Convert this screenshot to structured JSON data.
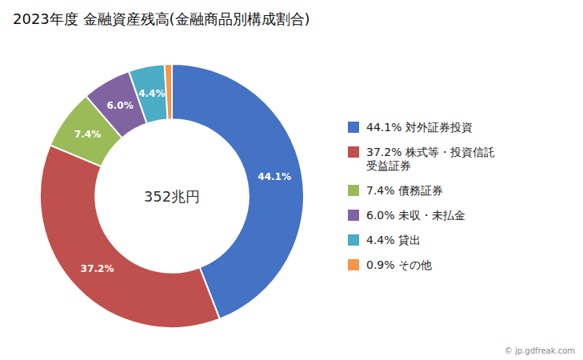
{
  "chart_data": {
    "type": "pie",
    "title": "2023年度 金融資産残高(金融商品別構成割合)",
    "annotations": [
      "352兆円",
      "© jp.gdfreak.com"
    ],
    "categories": [
      "44.1% 対外証券投資",
      "37.2% 株式等・投資信託\n受益証券",
      "7.4% 債務証券",
      "6.0% 未収・未払金",
      "4.4% 貸出",
      "0.9% その他"
    ],
    "values": [
      44.1,
      37.2,
      7.4,
      6.0,
      4.4,
      0.9
    ],
    "value_labels": [
      "44.1%",
      "37.2%",
      "7.4%",
      "6.0%",
      "4.4%",
      null
    ],
    "colors": [
      "#4472C4",
      "#C0504D",
      "#9BBB59",
      "#8064A2",
      "#4BACC6",
      "#F79646"
    ],
    "data_labels": true,
    "legend": "right"
  }
}
